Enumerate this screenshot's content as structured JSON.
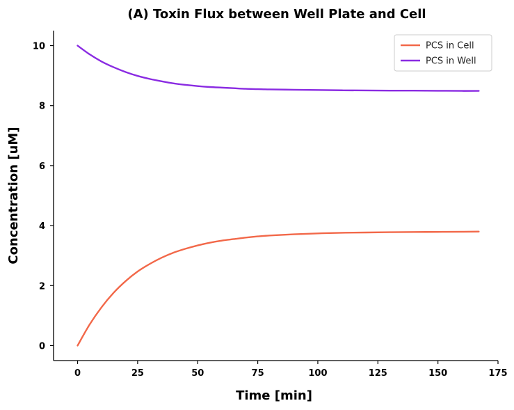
{
  "chart_data": {
    "type": "line",
    "title": "(A) Toxin Flux between Well Plate and Cell",
    "xlabel": "Time [min]",
    "ylabel": "Concentration [uM]",
    "xlim": [
      -10,
      175
    ],
    "ylim": [
      -0.5,
      10.5
    ],
    "xticks": [
      0,
      25,
      50,
      75,
      100,
      125,
      150,
      175
    ],
    "yticks": [
      0,
      2,
      4,
      6,
      8,
      10
    ],
    "grid": false,
    "legend_position": "top-right",
    "series": [
      {
        "name": "PCS in Cell",
        "color": "#f26849",
        "x": [
          0,
          5,
          10,
          15,
          20,
          25,
          30,
          35,
          40,
          45,
          50,
          55,
          60,
          65,
          70,
          75,
          80,
          90,
          100,
          110,
          120,
          130,
          140,
          150,
          160,
          167
        ],
        "y": [
          0,
          0.7,
          1.28,
          1.76,
          2.15,
          2.47,
          2.72,
          2.93,
          3.1,
          3.23,
          3.34,
          3.43,
          3.5,
          3.55,
          3.6,
          3.64,
          3.67,
          3.71,
          3.74,
          3.76,
          3.77,
          3.78,
          3.785,
          3.79,
          3.795,
          3.8
        ]
      },
      {
        "name": "PCS in Well",
        "color": "#8a2be2",
        "x": [
          0,
          5,
          10,
          15,
          20,
          25,
          30,
          35,
          40,
          45,
          50,
          55,
          60,
          65,
          70,
          75,
          80,
          90,
          100,
          110,
          120,
          130,
          140,
          150,
          160,
          167
        ],
        "y": [
          10,
          9.71,
          9.47,
          9.28,
          9.12,
          8.99,
          8.89,
          8.81,
          8.74,
          8.69,
          8.65,
          8.62,
          8.6,
          8.58,
          8.56,
          8.55,
          8.54,
          8.53,
          8.52,
          8.51,
          8.505,
          8.5,
          8.5,
          8.495,
          8.49,
          8.49
        ]
      }
    ]
  }
}
